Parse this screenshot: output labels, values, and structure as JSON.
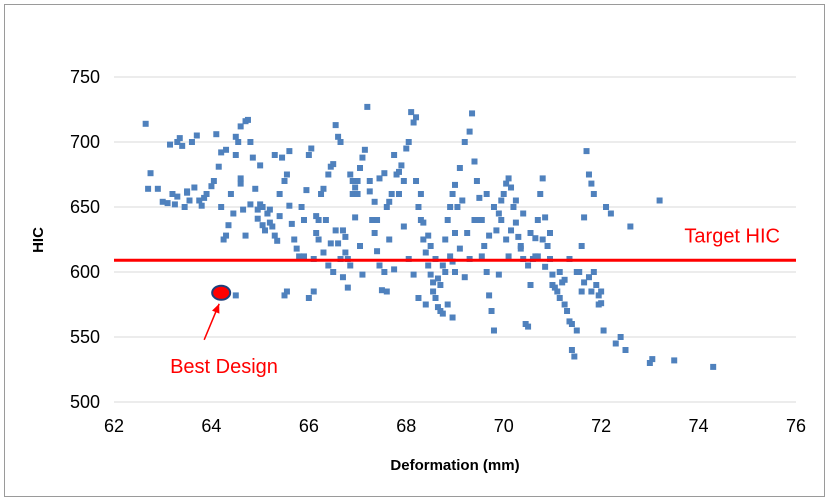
{
  "chart_data": {
    "type": "scatter",
    "title": "",
    "xlabel": "Deformation (mm)",
    "ylabel": "HIC",
    "xlim": [
      62,
      76
    ],
    "ylim": [
      500,
      750
    ],
    "x_ticks": [
      "62",
      "64",
      "66",
      "68",
      "70",
      "72",
      "74",
      "76"
    ],
    "y_ticks": [
      "500",
      "550",
      "600",
      "650",
      "700",
      "750"
    ],
    "grid": "horizontal",
    "colors": {
      "points": "#4f81bd",
      "target_line": "#ff0000",
      "best": "#ff0000",
      "best_outline": "#1f3f7a",
      "grid": "#d9d9d9"
    },
    "reference_line": {
      "y": 609,
      "label": "Target HIC"
    },
    "best_design": {
      "x": 64.2,
      "y": 584,
      "label": "Best Design"
    },
    "points": [
      [
        62.65,
        714
      ],
      [
        62.7,
        664
      ],
      [
        62.75,
        676
      ],
      [
        62.9,
        664
      ],
      [
        63.0,
        654
      ],
      [
        63.1,
        653
      ],
      [
        63.2,
        660
      ],
      [
        63.25,
        652
      ],
      [
        63.3,
        658
      ],
      [
        63.3,
        700
      ],
      [
        63.35,
        703
      ],
      [
        63.4,
        697
      ],
      [
        63.45,
        650
      ],
      [
        63.5,
        661
      ],
      [
        63.55,
        655
      ],
      [
        63.6,
        700
      ],
      [
        63.65,
        665
      ],
      [
        63.7,
        705
      ],
      [
        63.75,
        655
      ],
      [
        63.8,
        651
      ],
      [
        63.9,
        660
      ],
      [
        64.0,
        666
      ],
      [
        64.05,
        670
      ],
      [
        64.1,
        706
      ],
      [
        64.15,
        681
      ],
      [
        64.2,
        692
      ],
      [
        64.2,
        650
      ],
      [
        64.25,
        625
      ],
      [
        64.3,
        628
      ],
      [
        64.35,
        636
      ],
      [
        64.4,
        660
      ],
      [
        64.45,
        645
      ],
      [
        64.5,
        690
      ],
      [
        64.5,
        704
      ],
      [
        64.55,
        700
      ],
      [
        64.6,
        712
      ],
      [
        64.6,
        668
      ],
      [
        64.65,
        648
      ],
      [
        64.7,
        716
      ],
      [
        64.7,
        628
      ],
      [
        64.75,
        717
      ],
      [
        64.8,
        700
      ],
      [
        64.85,
        688
      ],
      [
        64.9,
        664
      ],
      [
        64.95,
        641
      ],
      [
        65.0,
        652
      ],
      [
        65.05,
        650
      ],
      [
        65.1,
        632
      ],
      [
        65.15,
        645
      ],
      [
        65.2,
        638
      ],
      [
        65.25,
        635
      ],
      [
        65.3,
        628
      ],
      [
        65.35,
        624
      ],
      [
        65.4,
        643
      ],
      [
        65.4,
        660
      ],
      [
        65.45,
        688
      ],
      [
        65.5,
        670
      ],
      [
        65.55,
        675
      ],
      [
        65.6,
        651
      ],
      [
        65.65,
        637
      ],
      [
        65.7,
        625
      ],
      [
        65.75,
        618
      ],
      [
        65.8,
        612
      ],
      [
        65.85,
        650
      ],
      [
        65.9,
        640
      ],
      [
        65.95,
        663
      ],
      [
        66.0,
        690
      ],
      [
        66.05,
        695
      ],
      [
        66.1,
        610
      ],
      [
        66.15,
        643
      ],
      [
        66.2,
        640
      ],
      [
        66.3,
        664
      ],
      [
        66.4,
        675
      ],
      [
        66.45,
        681
      ],
      [
        66.5,
        683
      ],
      [
        66.55,
        713
      ],
      [
        66.6,
        704
      ],
      [
        66.65,
        700
      ],
      [
        66.7,
        632
      ],
      [
        66.75,
        627
      ],
      [
        66.8,
        610
      ],
      [
        66.85,
        605
      ],
      [
        66.9,
        660
      ],
      [
        66.95,
        665
      ],
      [
        67.0,
        670
      ],
      [
        67.05,
        680
      ],
      [
        67.1,
        688
      ],
      [
        67.15,
        694
      ],
      [
        67.2,
        727
      ],
      [
        67.25,
        670
      ],
      [
        67.3,
        640
      ],
      [
        67.35,
        630
      ],
      [
        67.4,
        616
      ],
      [
        67.45,
        605
      ],
      [
        67.5,
        586
      ],
      [
        67.55,
        600
      ],
      [
        67.6,
        650
      ],
      [
        67.65,
        654
      ],
      [
        67.7,
        660
      ],
      [
        67.75,
        690
      ],
      [
        67.8,
        675
      ],
      [
        67.85,
        677
      ],
      [
        67.9,
        682
      ],
      [
        67.95,
        670
      ],
      [
        68.0,
        695
      ],
      [
        68.05,
        700
      ],
      [
        68.1,
        723
      ],
      [
        68.15,
        715
      ],
      [
        68.2,
        719
      ],
      [
        68.25,
        650
      ],
      [
        68.3,
        640
      ],
      [
        68.35,
        625
      ],
      [
        68.4,
        615
      ],
      [
        68.45,
        605
      ],
      [
        68.5,
        598
      ],
      [
        68.55,
        592
      ],
      [
        68.6,
        580
      ],
      [
        68.65,
        573
      ],
      [
        68.7,
        570
      ],
      [
        68.75,
        568
      ],
      [
        68.8,
        625
      ],
      [
        68.85,
        640
      ],
      [
        68.9,
        650
      ],
      [
        68.95,
        660
      ],
      [
        69.0,
        667
      ],
      [
        69.1,
        680
      ],
      [
        69.2,
        700
      ],
      [
        69.3,
        708
      ],
      [
        69.35,
        722
      ],
      [
        69.4,
        685
      ],
      [
        69.45,
        670
      ],
      [
        69.5,
        657
      ],
      [
        69.55,
        640
      ],
      [
        69.6,
        620
      ],
      [
        69.65,
        600
      ],
      [
        69.7,
        582
      ],
      [
        69.75,
        570
      ],
      [
        69.8,
        555
      ],
      [
        69.85,
        632
      ],
      [
        69.9,
        645
      ],
      [
        69.95,
        655
      ],
      [
        70.0,
        660
      ],
      [
        70.05,
        668
      ],
      [
        70.1,
        672
      ],
      [
        70.15,
        665
      ],
      [
        70.2,
        650
      ],
      [
        70.25,
        638
      ],
      [
        70.3,
        627
      ],
      [
        70.35,
        620
      ],
      [
        70.4,
        610
      ],
      [
        70.45,
        560
      ],
      [
        70.5,
        558
      ],
      [
        70.55,
        590
      ],
      [
        70.6,
        610
      ],
      [
        70.65,
        626
      ],
      [
        70.7,
        640
      ],
      [
        70.75,
        660
      ],
      [
        70.8,
        672
      ],
      [
        70.85,
        642
      ],
      [
        70.9,
        620
      ],
      [
        70.95,
        610
      ],
      [
        71.0,
        590
      ],
      [
        71.05,
        588
      ],
      [
        71.1,
        585
      ],
      [
        71.15,
        580
      ],
      [
        71.2,
        592
      ],
      [
        71.25,
        575
      ],
      [
        71.3,
        570
      ],
      [
        71.35,
        562
      ],
      [
        71.4,
        540
      ],
      [
        71.45,
        535
      ],
      [
        71.5,
        555
      ],
      [
        71.55,
        600
      ],
      [
        71.6,
        620
      ],
      [
        71.65,
        642
      ],
      [
        71.7,
        693
      ],
      [
        71.75,
        675
      ],
      [
        71.8,
        668
      ],
      [
        71.85,
        660
      ],
      [
        71.9,
        590
      ],
      [
        71.95,
        582
      ],
      [
        72.0,
        576
      ],
      [
        72.05,
        555
      ],
      [
        72.1,
        650
      ],
      [
        72.2,
        645
      ],
      [
        72.3,
        545
      ],
      [
        72.4,
        550
      ],
      [
        72.5,
        540
      ],
      [
        72.6,
        635
      ],
      [
        73.0,
        530
      ],
      [
        73.05,
        533
      ],
      [
        73.2,
        655
      ],
      [
        73.5,
        532
      ],
      [
        74.3,
        527
      ],
      [
        63.15,
        698
      ],
      [
        63.5,
        662
      ],
      [
        63.85,
        657
      ],
      [
        64.3,
        694
      ],
      [
        64.6,
        672
      ],
      [
        64.8,
        652
      ],
      [
        65.0,
        682
      ],
      [
        65.2,
        648
      ],
      [
        65.3,
        690
      ],
      [
        65.6,
        693
      ],
      [
        65.9,
        612
      ],
      [
        66.0,
        580
      ],
      [
        66.1,
        585
      ],
      [
        66.25,
        660
      ],
      [
        66.35,
        640
      ],
      [
        66.6,
        622
      ],
      [
        66.7,
        596
      ],
      [
        66.8,
        588
      ],
      [
        66.95,
        642
      ],
      [
        67.05,
        620
      ],
      [
        67.1,
        598
      ],
      [
        67.25,
        662
      ],
      [
        67.4,
        640
      ],
      [
        67.55,
        676
      ],
      [
        67.65,
        625
      ],
      [
        67.75,
        602
      ],
      [
        67.85,
        660
      ],
      [
        67.95,
        635
      ],
      [
        68.05,
        610
      ],
      [
        68.15,
        598
      ],
      [
        68.2,
        670
      ],
      [
        68.3,
        660
      ],
      [
        68.35,
        638
      ],
      [
        68.45,
        628
      ],
      [
        68.5,
        620
      ],
      [
        68.6,
        610
      ],
      [
        68.7,
        590
      ],
      [
        68.8,
        600
      ],
      [
        68.9,
        612
      ],
      [
        69.0,
        630
      ],
      [
        69.1,
        618
      ],
      [
        69.2,
        596
      ],
      [
        69.3,
        610
      ],
      [
        69.4,
        640
      ],
      [
        69.55,
        612
      ],
      [
        69.7,
        628
      ],
      [
        69.9,
        598
      ],
      [
        70.1,
        612
      ],
      [
        70.25,
        655
      ],
      [
        70.4,
        645
      ],
      [
        70.55,
        630
      ],
      [
        70.7,
        612
      ],
      [
        70.85,
        604
      ],
      [
        71.0,
        598
      ],
      [
        71.25,
        594
      ],
      [
        71.4,
        560
      ],
      [
        71.6,
        585
      ],
      [
        71.75,
        596
      ],
      [
        71.85,
        600
      ],
      [
        72.0,
        585
      ],
      [
        65.15,
        645
      ],
      [
        65.05,
        636
      ],
      [
        64.95,
        648
      ],
      [
        66.45,
        622
      ],
      [
        66.55,
        632
      ],
      [
        67.35,
        654
      ],
      [
        67.45,
        672
      ],
      [
        67.6,
        585
      ],
      [
        68.25,
        580
      ],
      [
        68.4,
        575
      ],
      [
        68.55,
        585
      ],
      [
        68.65,
        595
      ],
      [
        68.75,
        605
      ],
      [
        69.05,
        650
      ],
      [
        69.15,
        655
      ],
      [
        69.25,
        630
      ],
      [
        69.45,
        640
      ],
      [
        69.65,
        660
      ],
      [
        69.8,
        650
      ],
      [
        69.95,
        640
      ],
      [
        70.05,
        625
      ],
      [
        70.15,
        632
      ],
      [
        70.35,
        618
      ],
      [
        70.5,
        605
      ],
      [
        70.65,
        612
      ],
      [
        70.8,
        625
      ],
      [
        70.95,
        630
      ],
      [
        71.15,
        600
      ],
      [
        71.35,
        610
      ],
      [
        71.5,
        600
      ],
      [
        71.65,
        592
      ],
      [
        71.8,
        585
      ],
      [
        71.95,
        575
      ],
      [
        65.5,
        582
      ],
      [
        65.55,
        585
      ],
      [
        64.5,
        582
      ],
      [
        67.0,
        660
      ],
      [
        66.9,
        670
      ],
      [
        66.85,
        675
      ],
      [
        66.65,
        610
      ],
      [
        66.75,
        615
      ],
      [
        66.5,
        600
      ],
      [
        66.4,
        605
      ],
      [
        66.3,
        615
      ],
      [
        66.2,
        625
      ],
      [
        66.15,
        630
      ],
      [
        68.95,
        608
      ],
      [
        69.0,
        600
      ],
      [
        68.85,
        575
      ],
      [
        68.95,
        565
      ]
    ]
  },
  "annotations": {
    "target_label": "Target HIC",
    "best_label": "Best Design"
  }
}
